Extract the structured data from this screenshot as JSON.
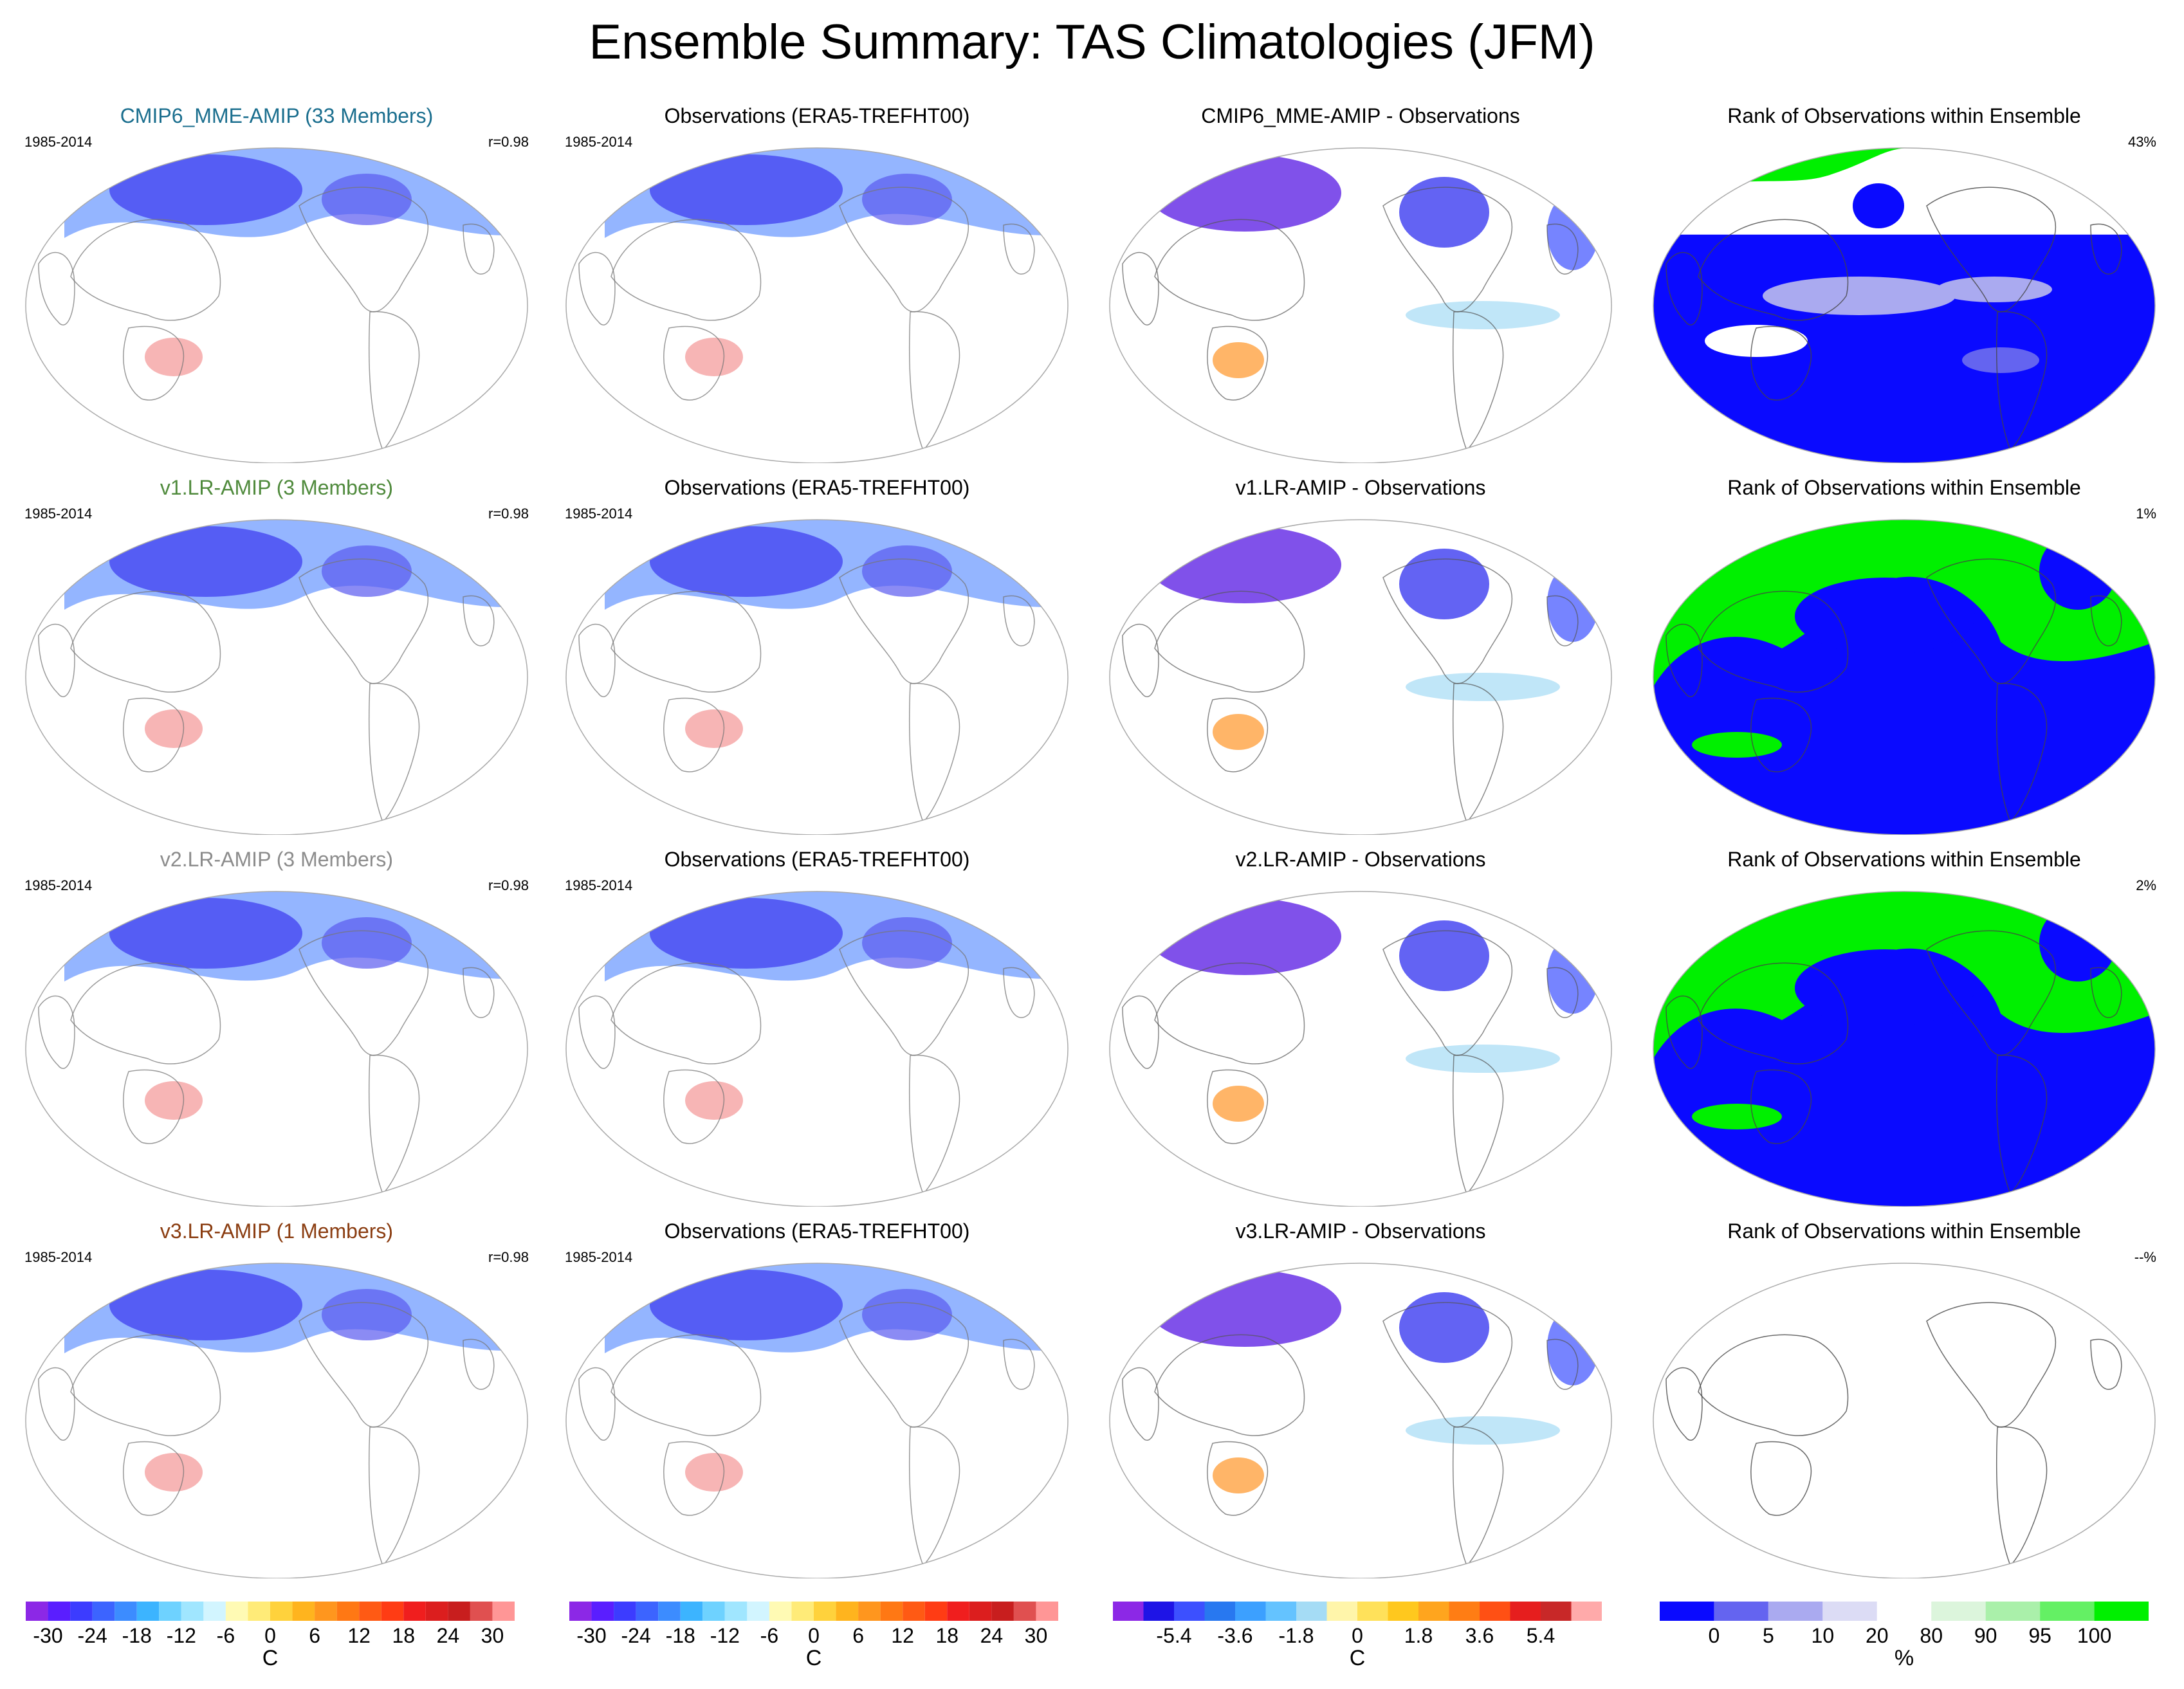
{
  "title": "Ensemble Summary: TAS Climatologies (JFM)",
  "colors": {
    "cmip6_title": "#1a6e8e",
    "v1_title": "#4f8a3c",
    "v2_title": "#8c8c8c",
    "v3_title": "#8a3c10",
    "text": "#000000"
  },
  "rows": [
    {
      "model": {
        "title": "CMIP6_MME-AMIP (33 Members)",
        "period": "1985-2014",
        "corr": "r=0.98",
        "title_color": "#1a6e8e"
      },
      "obs": {
        "title": "Observations (ERA5-TREFHT00)",
        "period": "1985-2014"
      },
      "diff": {
        "title": "CMIP6_MME-AMIP - Observations"
      },
      "rank": {
        "title": "Rank of Observations within Ensemble",
        "pct": "43%",
        "style": "mixed"
      }
    },
    {
      "model": {
        "title": "v1.LR-AMIP (3 Members)",
        "period": "1985-2014",
        "corr": "r=0.98",
        "title_color": "#4f8a3c"
      },
      "obs": {
        "title": "Observations (ERA5-TREFHT00)",
        "period": "1985-2014"
      },
      "diff": {
        "title": "v1.LR-AMIP - Observations"
      },
      "rank": {
        "title": "Rank of Observations within Ensemble",
        "pct": "1%",
        "style": "binary"
      }
    },
    {
      "model": {
        "title": "v2.LR-AMIP (3 Members)",
        "period": "1985-2014",
        "corr": "r=0.98",
        "title_color": "#8c8c8c"
      },
      "obs": {
        "title": "Observations (ERA5-TREFHT00)",
        "period": "1985-2014"
      },
      "diff": {
        "title": "v2.LR-AMIP - Observations"
      },
      "rank": {
        "title": "Rank of Observations within Ensemble",
        "pct": "2%",
        "style": "binary"
      }
    },
    {
      "model": {
        "title": "v3.LR-AMIP (1 Members)",
        "period": "1985-2014",
        "corr": "r=0.98",
        "title_color": "#8a3c10"
      },
      "obs": {
        "title": "Observations (ERA5-TREFHT00)",
        "period": "1985-2014"
      },
      "diff": {
        "title": "v3.LR-AMIP - Observations"
      },
      "rank": {
        "title": "Rank of Observations within Ensemble",
        "pct": "--%",
        "style": "empty"
      }
    }
  ],
  "colorbars": [
    {
      "unit": "C",
      "labels": [
        "-30",
        "-24",
        "-18",
        "-12",
        "-6",
        "0",
        "6",
        "12",
        "18",
        "24",
        "30"
      ],
      "colors": [
        "#8c28e6",
        "#5a1eff",
        "#3c3cff",
        "#3c64ff",
        "#3c8cff",
        "#3cb4ff",
        "#6ed2ff",
        "#a0e6ff",
        "#d2f5ff",
        "#fffab4",
        "#ffeb78",
        "#ffd23c",
        "#ffb41e",
        "#ff961e",
        "#ff7814",
        "#ff5a14",
        "#ff3c14",
        "#f01e1e",
        "#dc1e1e",
        "#c81e1e",
        "#e05050",
        "#ff9696"
      ]
    },
    {
      "unit": "C",
      "labels": [
        "-30",
        "-24",
        "-18",
        "-12",
        "-6",
        "0",
        "6",
        "12",
        "18",
        "24",
        "30"
      ],
      "colors": [
        "#8c28e6",
        "#5a1eff",
        "#3c3cff",
        "#3c64ff",
        "#3c8cff",
        "#3cb4ff",
        "#6ed2ff",
        "#a0e6ff",
        "#d2f5ff",
        "#fffab4",
        "#ffeb78",
        "#ffd23c",
        "#ffb41e",
        "#ff961e",
        "#ff7814",
        "#ff5a14",
        "#ff3c14",
        "#f01e1e",
        "#dc1e1e",
        "#c81e1e",
        "#e05050",
        "#ff9696"
      ]
    },
    {
      "unit": "C",
      "labels": [
        "-5.4",
        "-3.6",
        "-1.8",
        "0",
        "1.8",
        "3.6",
        "5.4"
      ],
      "colors": [
        "#8c28e6",
        "#1e14e6",
        "#3c50ff",
        "#2878f0",
        "#3ca0ff",
        "#64c3ff",
        "#a5dcf5",
        "#fff5aa",
        "#ffe15a",
        "#ffc81e",
        "#ffa51e",
        "#ff7d14",
        "#ff5014",
        "#e61e1e",
        "#c82828",
        "#ffaaaa"
      ]
    },
    {
      "unit": "%",
      "labels": [
        "0",
        "5",
        "10",
        "20",
        "80",
        "90",
        "95",
        "100"
      ],
      "colors": [
        "#0a0aff",
        "#6464f0",
        "#aaaaf0",
        "#dcdcf5",
        "#ffffff",
        "#dcf5dc",
        "#aaf0aa",
        "#64f064",
        "#00f000"
      ]
    }
  ]
}
